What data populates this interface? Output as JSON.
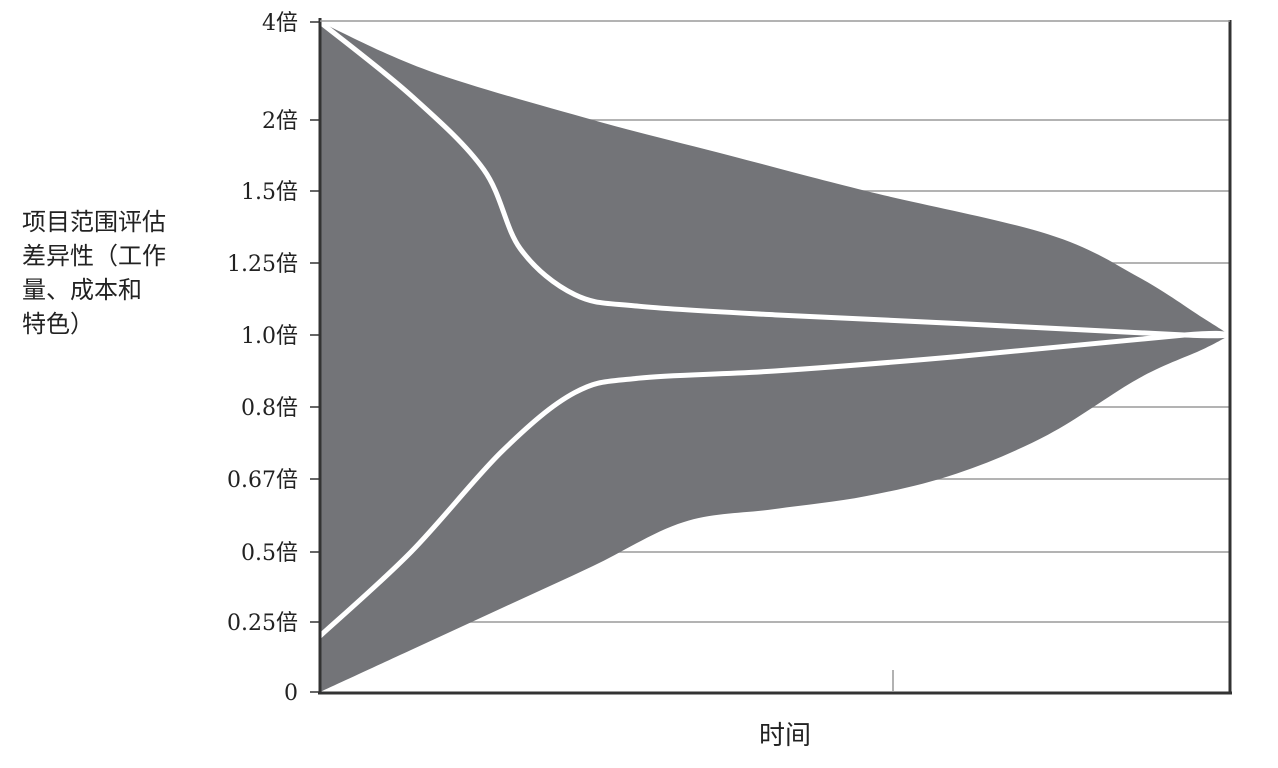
{
  "chart_data": {
    "type": "area",
    "ylabel_lines": [
      "项目范围评估",
      "差异性（工作",
      "量、成本和",
      "特色）"
    ],
    "xlabel": "时间",
    "y_ticks": [
      {
        "value": 4.0,
        "label": "4倍"
      },
      {
        "value": 2.0,
        "label": "2倍"
      },
      {
        "value": 1.5,
        "label": "1.5倍"
      },
      {
        "value": 1.25,
        "label": "1.25倍"
      },
      {
        "value": 1.0,
        "label": "1.0倍"
      },
      {
        "value": 0.8,
        "label": "0.8倍"
      },
      {
        "value": 0.67,
        "label": "0.67倍"
      },
      {
        "value": 0.5,
        "label": "0.5倍"
      },
      {
        "value": 0.25,
        "label": "0.25倍"
      },
      {
        "value": 0.0,
        "label": "0"
      }
    ],
    "xlim": [
      0,
      1
    ],
    "grid": true,
    "colors": {
      "band": "#737478",
      "inner_lines": "#ffffff",
      "grid": "#9a9a9a",
      "axis": "#333333"
    },
    "series": [
      {
        "role": "outer-upper",
        "points": [
          [
            0,
            4.0
          ],
          [
            0.12,
            3.0
          ],
          [
            0.3,
            2.0
          ],
          [
            0.45,
            1.75
          ],
          [
            0.6,
            1.5
          ],
          [
            0.8,
            1.35
          ],
          [
            0.9,
            1.2
          ],
          [
            0.97,
            1.06
          ],
          [
            1.0,
            1.0
          ]
        ]
      },
      {
        "role": "outer-lower",
        "points": [
          [
            0,
            0.0
          ],
          [
            0.1,
            0.15
          ],
          [
            0.2,
            0.3
          ],
          [
            0.3,
            0.45
          ],
          [
            0.4,
            0.57
          ],
          [
            0.5,
            0.6
          ],
          [
            0.6,
            0.63
          ],
          [
            0.7,
            0.68
          ],
          [
            0.8,
            0.75
          ],
          [
            0.9,
            0.88
          ],
          [
            0.97,
            0.96
          ],
          [
            1.0,
            1.0
          ]
        ]
      },
      {
        "role": "inner-upper",
        "points": [
          [
            0,
            4.0
          ],
          [
            0.1,
            2.5
          ],
          [
            0.18,
            1.65
          ],
          [
            0.22,
            1.3
          ],
          [
            0.28,
            1.14
          ],
          [
            0.35,
            1.1
          ],
          [
            0.5,
            1.07
          ],
          [
            0.7,
            1.04
          ],
          [
            0.95,
            1.0
          ],
          [
            1.0,
            1.0
          ]
        ]
      },
      {
        "role": "inner-lower",
        "points": [
          [
            0,
            0.2
          ],
          [
            0.1,
            0.5
          ],
          [
            0.2,
            0.72
          ],
          [
            0.28,
            0.84
          ],
          [
            0.35,
            0.88
          ],
          [
            0.5,
            0.9
          ],
          [
            0.7,
            0.94
          ],
          [
            0.95,
            1.0
          ],
          [
            1.0,
            1.0
          ]
        ]
      }
    ]
  }
}
